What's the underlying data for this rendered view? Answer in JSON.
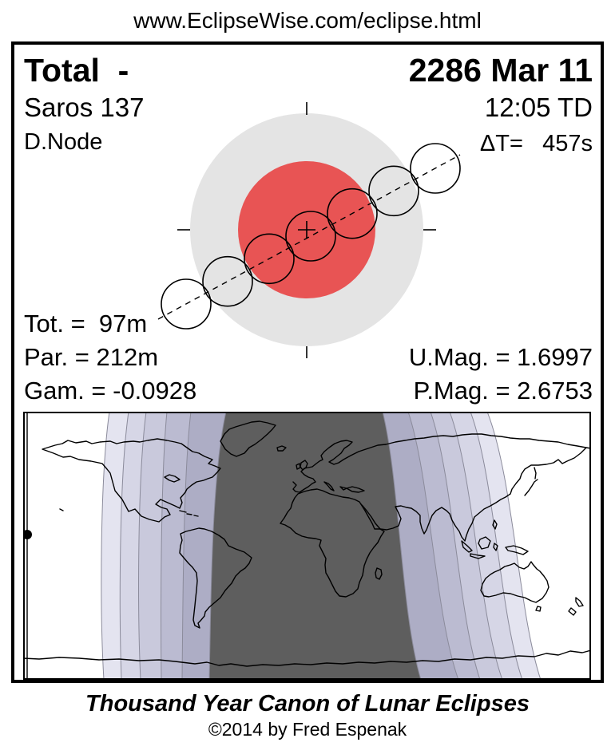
{
  "header": {
    "url": "www.EclipseWise.com/eclipse.html"
  },
  "panel": {
    "eclipse_type": "Total  -",
    "date": "2286 Mar 11",
    "saros": "Saros 137",
    "time": "12:05 TD",
    "delta_t": "ΔT=   457s",
    "node": "D.Node",
    "tot": "Tot. =  97m",
    "par": "Par. = 212m",
    "gam": "Gam. = -0.0928",
    "umag": "U.Mag. = 1.6997",
    "pmag": "P.Mag. = 2.6753"
  },
  "chart_data": {
    "type": "diagram",
    "title": "Lunar eclipse geometry and visibility map",
    "eclipse": {
      "type": "Total",
      "date": "2286 Mar 11",
      "greatest_eclipse_time_TD": "12:05",
      "delta_t_seconds": 457,
      "saros_series": 137,
      "node": "Descending",
      "totality_duration_min": 97,
      "partial_duration_min": 212,
      "gamma": -0.0928,
      "umbral_magnitude": 1.6997,
      "penumbral_magnitude": 2.6753
    }
  },
  "diagram": {
    "penumbra_color": "#e4e4e4",
    "umbra_color": "#e85454",
    "moon_radius": 31,
    "moons": [
      [
        215,
        325
      ],
      [
        267,
        296.7
      ],
      [
        319,
        268.3
      ],
      [
        371,
        240
      ],
      [
        423,
        211.7
      ],
      [
        475,
        183.3
      ],
      [
        527,
        155
      ]
    ]
  },
  "map": {
    "band_colors": [
      "#e4e4f0",
      "#d6d6e6",
      "#c9c9dc",
      "#bbbbd1",
      "#adadc5"
    ],
    "core_color": "#5e5e5e",
    "band_edge_color": "#8b8b9b"
  },
  "footer": {
    "title": "Thousand Year Canon of Lunar Eclipses",
    "copyright": "©2014 by Fred Espenak"
  }
}
